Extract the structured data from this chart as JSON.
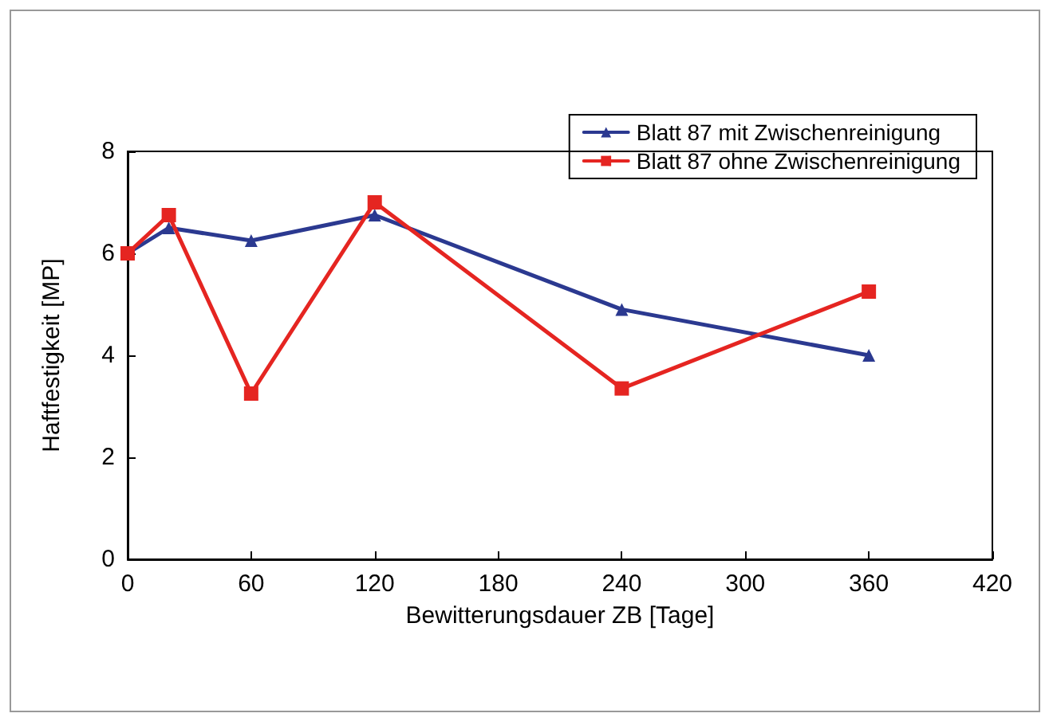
{
  "chart_data": {
    "type": "line",
    "xlabel": "Bewitterungsdauer ZB [Tage]",
    "ylabel": "Haftfestigkeit [MP]",
    "x": [
      0,
      20,
      60,
      120,
      240,
      360
    ],
    "series": [
      {
        "name": "Blatt 87 mit Zwischenreinigung",
        "color": "#2b3990",
        "marker": "triangle",
        "values": [
          6.0,
          6.5,
          6.25,
          6.75,
          4.9,
          4.0
        ]
      },
      {
        "name": "Blatt 87 ohne Zwischenreinigung",
        "color": "#e52521",
        "marker": "square",
        "values": [
          6.0,
          6.75,
          3.25,
          7.0,
          3.35,
          5.25
        ]
      }
    ],
    "xlim": [
      0,
      420
    ],
    "xticks": [
      0,
      60,
      120,
      180,
      240,
      300,
      360,
      420
    ],
    "ylim": [
      0,
      8
    ],
    "yticks": [
      0,
      2,
      4,
      6,
      8
    ],
    "grid": false,
    "legend": "top right",
    "line_style": "solid"
  }
}
